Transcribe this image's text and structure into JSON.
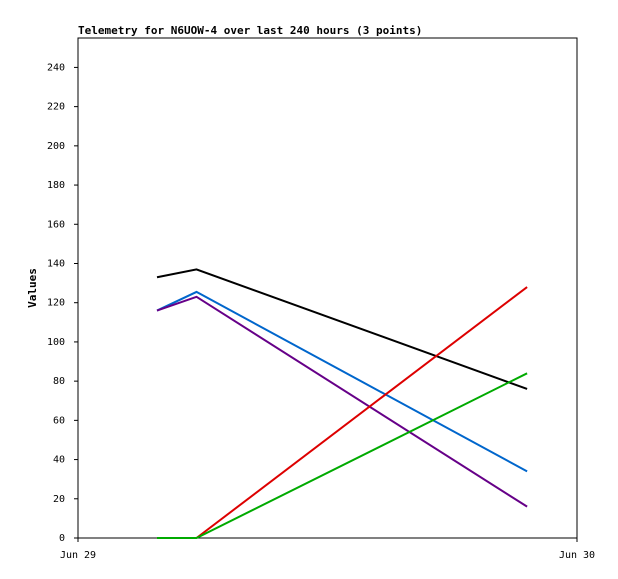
{
  "chart_data": {
    "type": "line",
    "title": "Telemetry for N6UOW-4 over last 240 hours (3 points)",
    "y_label": "Values",
    "x": [
      3.8,
      5.7,
      21.6
    ],
    "xlim": [
      0,
      24
    ],
    "xticks": [
      {
        "value": 0,
        "label": "Jun 29"
      },
      {
        "value": 24,
        "label": "Jun 30"
      }
    ],
    "ylim": [
      0,
      255
    ],
    "yticks": [
      0,
      20,
      40,
      60,
      80,
      100,
      120,
      140,
      160,
      180,
      200,
      220,
      240
    ],
    "series": [
      {
        "name": "black",
        "color": "#000000",
        "values": [
          133,
          137,
          76
        ]
      },
      {
        "name": "blue",
        "color": "#0066cc",
        "values": [
          116,
          125.5,
          34
        ]
      },
      {
        "name": "purple",
        "color": "#660088",
        "values": [
          116,
          123,
          16
        ]
      },
      {
        "name": "red",
        "color": "#dd0000",
        "values": [
          null,
          0,
          128
        ]
      },
      {
        "name": "green",
        "color": "#00aa00",
        "values": [
          0,
          0,
          84
        ]
      }
    ]
  }
}
